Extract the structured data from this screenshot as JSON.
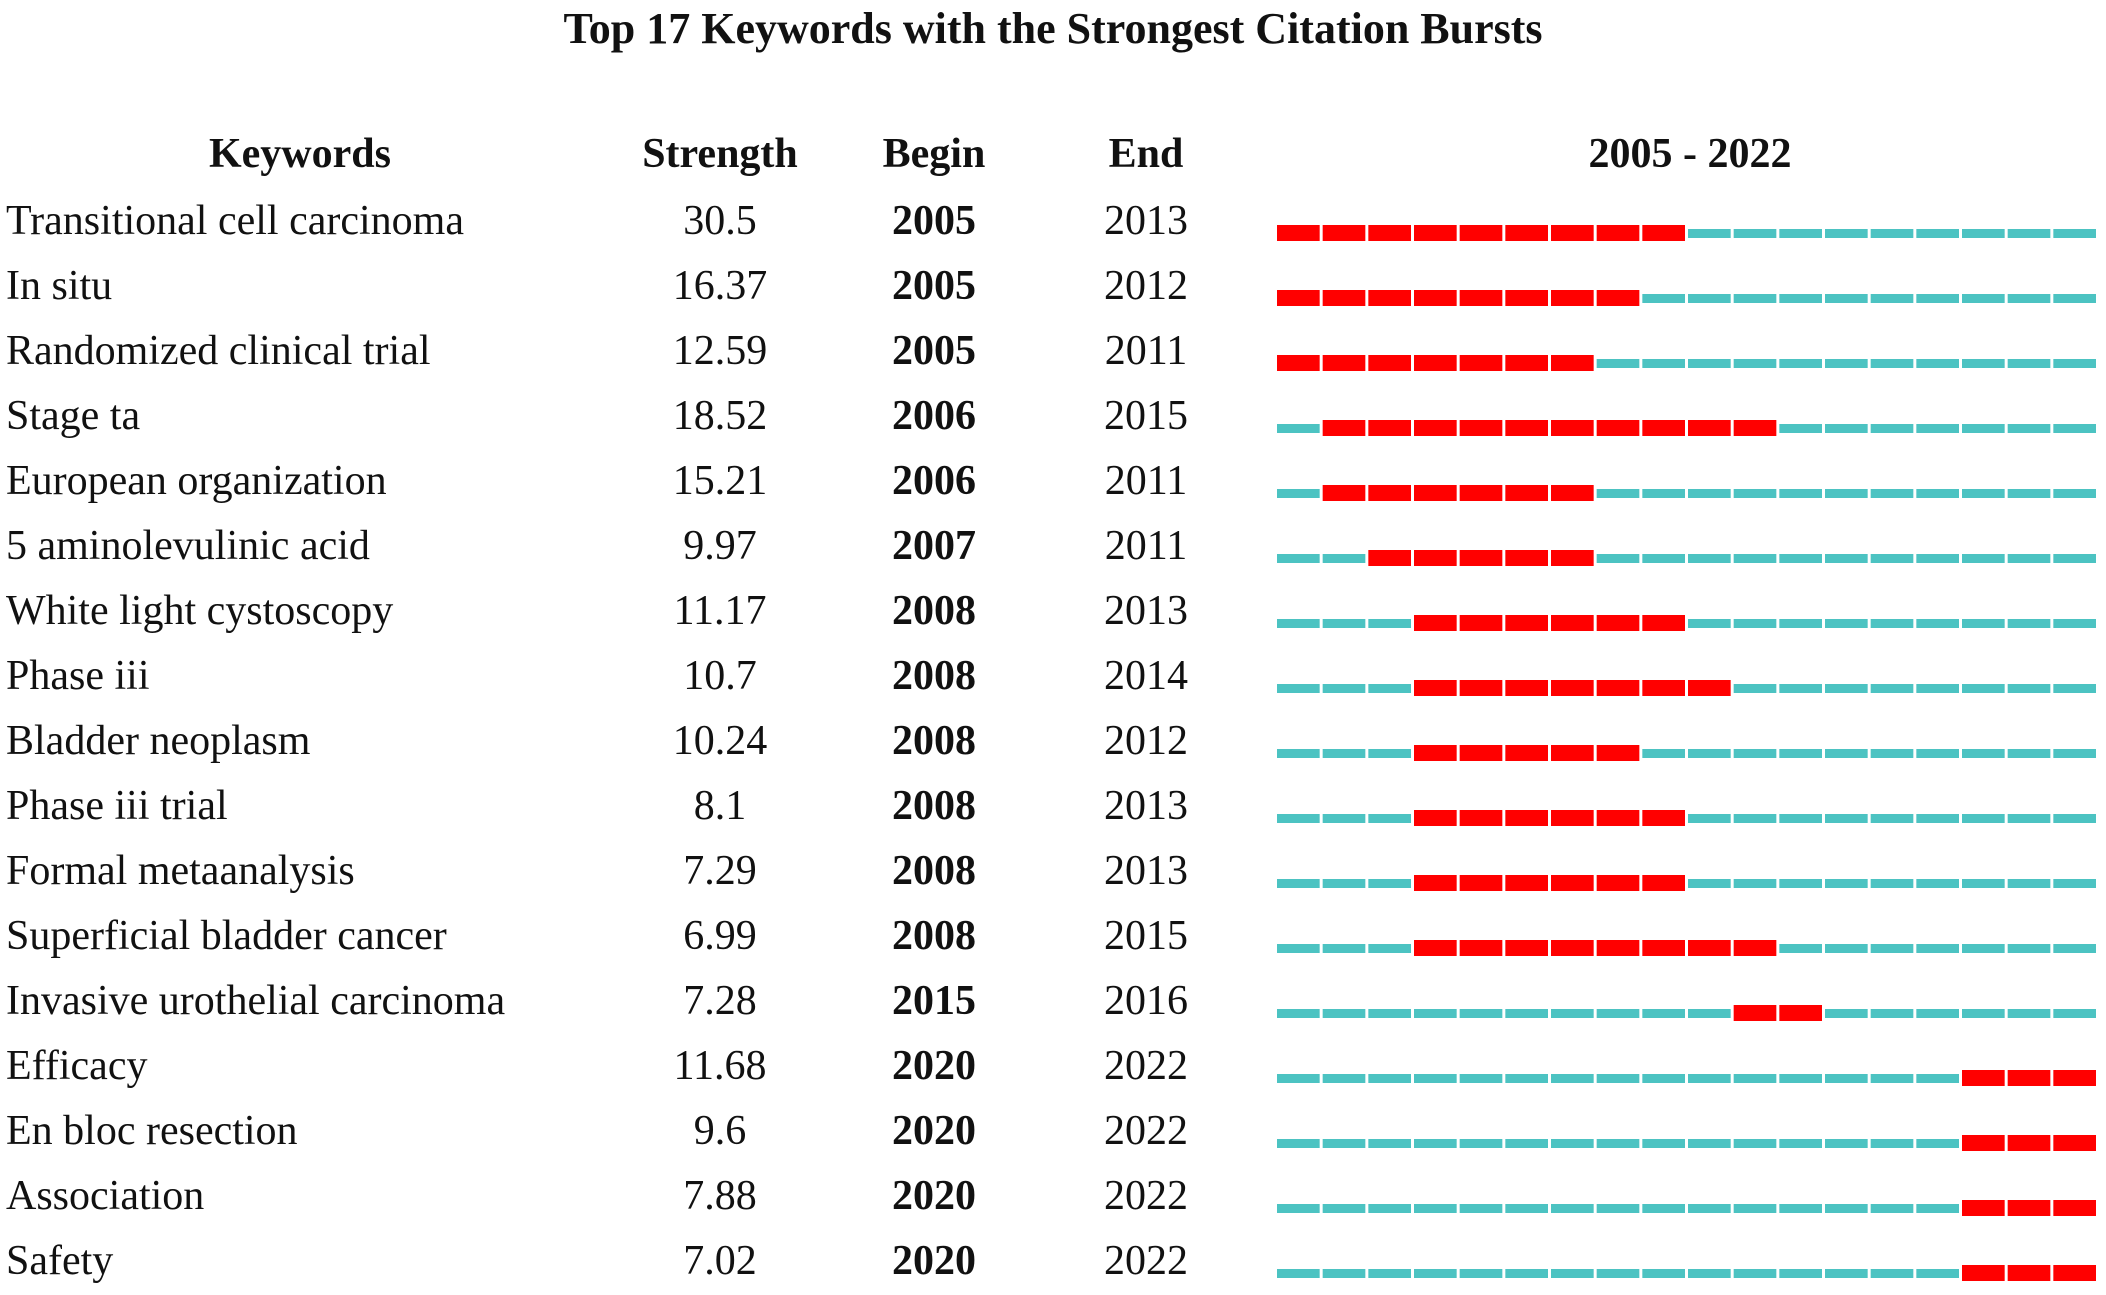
{
  "chart_data": {
    "type": "table",
    "title": "Top 17 Keywords with the Strongest Citation Bursts",
    "columns": [
      "Keywords",
      "Strength",
      "Begin",
      "End",
      "2005 - 2022"
    ],
    "range": [
      2005,
      2022
    ],
    "colors": {
      "burst": "#ff0000",
      "base": "#4cc3c2"
    },
    "rows": [
      {
        "keyword": "Transitional cell carcinoma",
        "strength": "30.5",
        "begin": "2005",
        "end": "2013"
      },
      {
        "keyword": "In situ",
        "strength": "16.37",
        "begin": "2005",
        "end": "2012"
      },
      {
        "keyword": "Randomized clinical trial",
        "strength": "12.59",
        "begin": "2005",
        "end": "2011"
      },
      {
        "keyword": "Stage ta",
        "strength": "18.52",
        "begin": "2006",
        "end": "2015"
      },
      {
        "keyword": "European organization",
        "strength": "15.21",
        "begin": "2006",
        "end": "2011"
      },
      {
        "keyword": "5 aminolevulinic acid",
        "strength": "9.97",
        "begin": "2007",
        "end": "2011"
      },
      {
        "keyword": "White light cystoscopy",
        "strength": "11.17",
        "begin": "2008",
        "end": "2013"
      },
      {
        "keyword": "Phase iii",
        "strength": "10.7",
        "begin": "2008",
        "end": "2014"
      },
      {
        "keyword": "Bladder neoplasm",
        "strength": "10.24",
        "begin": "2008",
        "end": "2012"
      },
      {
        "keyword": "Phase iii trial",
        "strength": "8.1",
        "begin": "2008",
        "end": "2013"
      },
      {
        "keyword": "Formal metaanalysis",
        "strength": "7.29",
        "begin": "2008",
        "end": "2013"
      },
      {
        "keyword": "Superficial bladder cancer",
        "strength": "6.99",
        "begin": "2008",
        "end": "2015"
      },
      {
        "keyword": "Invasive urothelial carcinoma",
        "strength": "7.28",
        "begin": "2015",
        "end": "2016"
      },
      {
        "keyword": "Efficacy",
        "strength": "11.68",
        "begin": "2020",
        "end": "2022"
      },
      {
        "keyword": "En bloc resection",
        "strength": "9.6",
        "begin": "2020",
        "end": "2022"
      },
      {
        "keyword": "Association",
        "strength": "7.88",
        "begin": "2020",
        "end": "2022"
      },
      {
        "keyword": "Safety",
        "strength": "7.02",
        "begin": "2020",
        "end": "2022"
      }
    ]
  }
}
